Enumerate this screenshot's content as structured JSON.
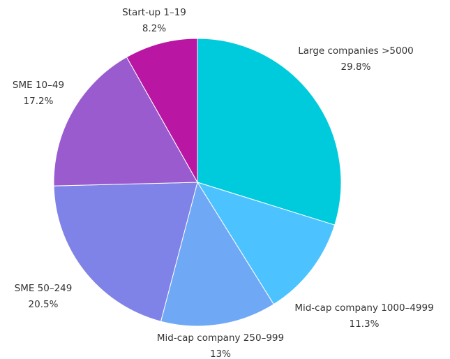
{
  "chart_data": {
    "type": "pie",
    "categories": [
      "Large companies >5000",
      "Mid-cap company 1000–4999",
      "Mid-cap company 250–999",
      "SME 50–249",
      "SME 10–49",
      "Start-up 1–19"
    ],
    "values": [
      29.8,
      11.3,
      13,
      20.5,
      17.2,
      8.2
    ],
    "value_labels": [
      "29.8%",
      "11.3%",
      "13%",
      "20.5%",
      "17.2%",
      "8.2%"
    ],
    "colors": [
      "#00cbdc",
      "#4cc3ff",
      "#6fa8f5",
      "#7f82e6",
      "#9a5bcf",
      "#ba16a4"
    ]
  }
}
